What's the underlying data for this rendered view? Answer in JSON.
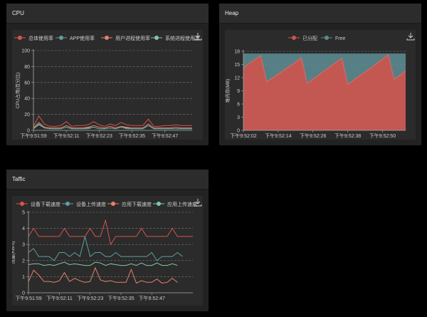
{
  "cards": [
    {
      "title": "CPU"
    },
    {
      "title": "Heap"
    },
    {
      "title": "Taffic"
    }
  ],
  "chart_data": [
    {
      "type": "line",
      "title": "CPU",
      "ylabel": "CPU占用(百分比)",
      "ylim": [
        0,
        100
      ],
      "yticks": [
        0,
        20,
        40,
        60,
        80,
        100
      ],
      "xticks": [
        "下午9:51:59",
        "下午9:52:11",
        "下午9:52:23",
        "下午9:52:35",
        "下午9:52:47"
      ],
      "series": [
        {
          "name": "总体使用率",
          "color": "#d9534f",
          "values": [
            5,
            18,
            8,
            5,
            5,
            6,
            11,
            5,
            6,
            6,
            7,
            11,
            7,
            5,
            8,
            6,
            10,
            7,
            6,
            6,
            6,
            14,
            5,
            5,
            6,
            6,
            7,
            6,
            6,
            6
          ]
        },
        {
          "name": "APP使用率",
          "color": "#5f9ea0",
          "values": [
            2,
            7,
            3,
            2,
            2,
            2,
            4,
            2,
            2,
            2,
            2,
            4,
            2,
            2,
            3,
            2,
            4,
            2,
            2,
            2,
            2,
            6,
            2,
            2,
            2,
            2,
            2,
            2,
            2,
            2
          ]
        },
        {
          "name": "用户进程使用率",
          "color": "#e8806a",
          "values": [
            3,
            10,
            4,
            3,
            3,
            3,
            6,
            3,
            3,
            3,
            4,
            6,
            4,
            3,
            5,
            3,
            5,
            4,
            3,
            3,
            3,
            8,
            3,
            3,
            3,
            3,
            4,
            3,
            3,
            3
          ]
        },
        {
          "name": "系统进程使用率",
          "color": "#7fc8a9",
          "values": [
            2,
            8,
            3,
            2,
            2,
            2,
            4,
            2,
            2,
            2,
            3,
            4,
            2,
            2,
            3,
            2,
            4,
            3,
            2,
            2,
            2,
            6,
            2,
            2,
            2,
            2,
            2,
            2,
            2,
            2
          ]
        }
      ]
    },
    {
      "type": "area",
      "title": "Heap",
      "ylabel": "堆内存(MB)",
      "ylim": [
        0,
        18
      ],
      "yticks": [
        0,
        3,
        6,
        9,
        12,
        15,
        18
      ],
      "xticks": [
        "下午9:52:02",
        "下午9:52:14",
        "下午9:52:26",
        "下午9:52:38",
        "下午9:52:50"
      ],
      "series": [
        {
          "name": "已分配",
          "color": "#c9544f",
          "values": [
            14.2,
            15.2,
            16.1,
            17,
            11,
            11.9,
            12.8,
            13.7,
            14.6,
            15.5,
            16.5,
            10.7,
            11.6,
            12.6,
            13.6,
            14.5,
            15.5,
            16.4,
            10.5,
            11.4,
            12.4,
            13.3,
            14.2,
            15.2,
            16.2,
            17.2,
            11.6,
            12.5,
            13.5
          ]
        },
        {
          "name": "Free",
          "color": "#5b8a8f",
          "total": 17.5
        }
      ]
    },
    {
      "type": "line",
      "title": "Taffic",
      "ylabel": "流量(KB/S)",
      "ylim": [
        0,
        5
      ],
      "yticks": [
        0,
        1,
        2,
        3,
        4,
        5
      ],
      "xticks": [
        "下午9:51:59",
        "下午9:52:11",
        "下午9:52:23",
        "下午9:52:35",
        "下午9:52:47"
      ],
      "series": [
        {
          "name": "设备下载速度",
          "color": "#d9534f",
          "values": [
            3.5,
            4,
            3.5,
            3.5,
            3.5,
            3.5,
            3.5,
            4,
            3.5,
            3.5,
            3.5,
            3.5,
            4,
            3.5,
            3.5,
            4.5,
            3,
            3.5,
            3.5,
            3.5,
            3.5,
            3.5,
            4,
            3.5,
            3.5,
            3.5,
            3.5,
            3.5,
            4,
            3.5,
            3.5,
            3.5,
            3.5
          ]
        },
        {
          "name": "设备上传速度",
          "color": "#5f9ea0",
          "values": [
            2.5,
            2.75,
            2.25,
            2.25,
            2.25,
            2,
            2.5,
            2.5,
            2.25,
            2.5,
            2.25,
            3.5,
            2.25,
            2.5,
            2.5,
            2.25,
            2.25,
            2.5,
            2.25,
            2.25,
            2.25,
            2.25,
            2.25,
            2.25,
            2.5,
            2,
            2.25,
            2.25,
            2.25,
            2.5,
            2.25
          ]
        },
        {
          "name": "应用下载速度",
          "color": "#e8806a",
          "values": [
            0.7,
            1.4,
            1.1,
            0.7,
            0.7,
            0.65,
            0.75,
            1.25,
            0.7,
            0.9,
            0.75,
            0.65,
            0.7,
            1.55,
            0.8,
            0.7,
            0.75,
            0.65,
            0.65,
            0.65,
            1.45,
            0.6,
            0.75,
            0.65,
            0.65,
            0.85,
            0.6,
            0.65,
            0.9,
            0.65
          ]
        },
        {
          "name": "应用上传速度",
          "color": "#7fc8a9",
          "values": [
            1.75,
            1.8,
            1.8,
            1.7,
            1.75,
            1.7,
            1.8,
            1.9,
            1.75,
            1.8,
            1.75,
            1.7,
            1.7,
            1.9,
            1.85,
            1.7,
            1.8,
            1.75,
            1.7,
            1.7,
            1.8,
            1.7,
            1.85,
            1.7,
            1.7,
            1.85,
            1.7,
            1.7,
            1.8,
            1.7
          ]
        }
      ]
    }
  ]
}
